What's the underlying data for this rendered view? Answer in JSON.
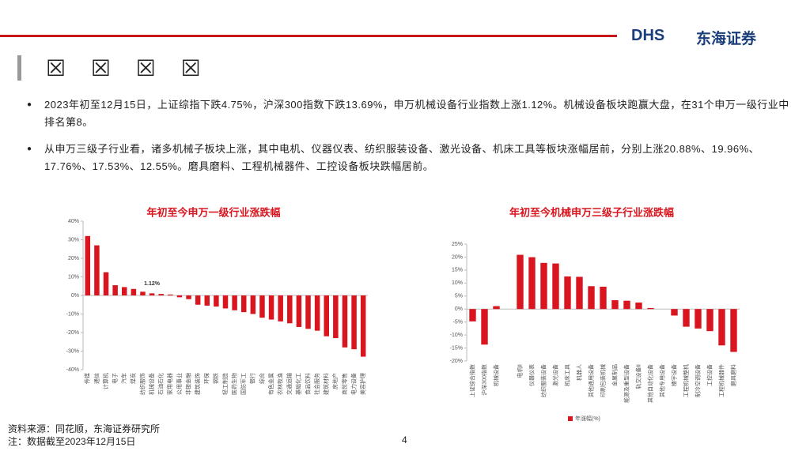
{
  "header": {
    "logo": "DHS",
    "company": "东海证券",
    "title": "☒ ☒ ☒ ☒"
  },
  "bullets": [
    "2023年初至12月15日，上证综指下跌4.75%，沪深300指数下跌13.69%，申万机械设备行业指数上涨1.12%。机械设备板块跑赢大盘，在31个申万一级行业中排名第8。",
    "从申万三级子行业看，诸多机械子板块上涨，其中电机、仪器仪表、纺织服装设备、激光设备、机床工具等板块涨幅居前，分别上涨20.88%、19.96%、17.76%、17.53%、12.55%。磨具磨料、工程机械器件、工控设备板块跌幅居前。"
  ],
  "chart_data": [
    {
      "type": "bar",
      "title": "年初至今申万一级行业涨跌幅",
      "color": "#d9161f",
      "categories": [
        "传媒",
        "通信",
        "计算机",
        "电子",
        "汽车",
        "煤炭",
        "纺织服饰",
        "机械设备",
        "石油石化",
        "家用电器",
        "公用事业",
        "非银金融",
        "建筑装饰",
        "环保",
        "钢铁",
        "轻工制造",
        "医药生物",
        "国防军工",
        "银行",
        "综合",
        "有色金属",
        "农林牧渔",
        "交通运输",
        "基础化工",
        "食品饮料",
        "社会服务",
        "建筑材料",
        "房地产",
        "商贸零售",
        "电力设备",
        "美容护理"
      ],
      "values": [
        32,
        27,
        12.5,
        5.5,
        4.5,
        3.5,
        2,
        1.12,
        0.8,
        0.5,
        -1,
        -2,
        -5,
        -5.5,
        -6,
        -7,
        -8,
        -9,
        -10,
        -12,
        -13,
        -14,
        -15,
        -17,
        -18,
        -19,
        -22,
        -23,
        -28,
        -29,
        -33
      ],
      "value_labels": [
        null,
        null,
        null,
        null,
        null,
        null,
        null,
        "1.12%",
        null,
        null,
        null,
        null,
        null,
        null,
        null,
        null,
        null,
        null,
        null,
        null,
        null,
        null,
        null,
        null,
        null,
        null,
        null,
        null,
        null,
        null,
        null
      ],
      "ylim": [
        -40,
        40
      ],
      "yticks": [
        {
          "value": 40,
          "label": "40%"
        },
        {
          "value": 30,
          "label": "30%"
        },
        {
          "value": 20,
          "label": "20%"
        },
        {
          "value": 10,
          "label": "10%"
        },
        {
          "value": 0,
          "label": "0%"
        },
        {
          "value": -10,
          "label": "-10%"
        },
        {
          "value": -20,
          "label": "-20%"
        },
        {
          "value": -30,
          "label": "-30%"
        },
        {
          "value": -40,
          "label": "-40%"
        }
      ]
    },
    {
      "type": "bar",
      "title": "年初至今机械申万三级子行业涨跌幅",
      "color": "#d9161f",
      "legend": "年涨幅(%)",
      "categories": [
        "上证综合指数",
        "沪深300指数",
        "机械设备",
        null,
        "电机Ⅱ",
        "仪器仪表",
        "纺织服装设备",
        "激光设备",
        "机床工具",
        "机器人",
        "其他通用设备",
        "印刷包装机械",
        "金属制品",
        "能源及重型设备",
        "轨交设备Ⅱ",
        "其他自动化设备",
        "其他专用设备",
        "楼宇设备",
        "工程机械整机",
        "制冷空调设备",
        "工控设备",
        "工程机械器件",
        "磨具磨料"
      ],
      "values": [
        -4.75,
        -13.69,
        1.12,
        null,
        20.88,
        19.96,
        17.76,
        17.53,
        12.55,
        12.4,
        8.8,
        8.6,
        3.4,
        3.2,
        2.5,
        0.4,
        0,
        -2.5,
        -6.8,
        -7.5,
        -8.5,
        -14,
        -16.5
      ],
      "ylim": [
        -20,
        25
      ],
      "yticks": [
        {
          "value": 25,
          "label": "25%"
        },
        {
          "value": 20,
          "label": "20%"
        },
        {
          "value": 15,
          "label": "15%"
        },
        {
          "value": 10,
          "label": "10%"
        },
        {
          "value": 5,
          "label": "5%"
        },
        {
          "value": 0,
          "label": "0%"
        },
        {
          "value": -5,
          "label": "-5%"
        },
        {
          "value": -10,
          "label": "-10%"
        },
        {
          "value": -15,
          "label": "-15%"
        },
        {
          "value": -20,
          "label": "-20%"
        }
      ]
    }
  ],
  "footer": {
    "source": "资料来源：同花顺，东海证券研究所",
    "note": "注：数据截至2023年12月15日",
    "page": "4"
  }
}
